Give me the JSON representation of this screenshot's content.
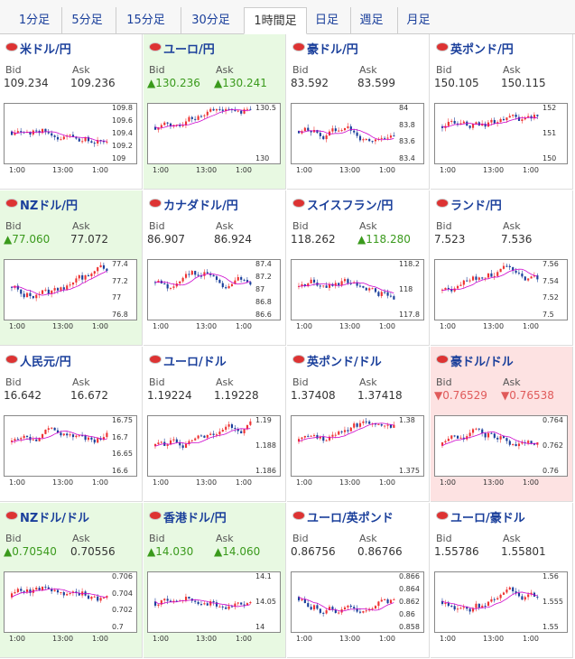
{
  "tabs": [
    "1分足",
    "5分足",
    "15分足",
    "30分足",
    "1時間足",
    "日足",
    "週足",
    "月足"
  ],
  "active_tab": "1時間足",
  "bid_label": "Bid",
  "ask_label": "Ask",
  "x_ticks": [
    "1:00",
    "13:00",
    "1:00"
  ],
  "pairs": [
    {
      "name": "米ドル/円",
      "bid": "109.234",
      "ask": "109.236",
      "state": "none",
      "bid_up": "",
      "ask_up": "",
      "yticks": [
        "109.8",
        "109.6",
        "109.4",
        "109.2",
        "109"
      ]
    },
    {
      "name": "ユーロ/円",
      "bid": "▲130.236",
      "ask": "▲130.241",
      "state": "up",
      "bid_up": "g",
      "ask_up": "g",
      "yticks": [
        "130.5",
        "130"
      ]
    },
    {
      "name": "豪ドル/円",
      "bid": "83.592",
      "ask": "83.599",
      "state": "none",
      "bid_up": "",
      "ask_up": "",
      "yticks": [
        "84",
        "83.8",
        "83.6",
        "83.4"
      ]
    },
    {
      "name": "英ポンド/円",
      "bid": "150.105",
      "ask": "150.115",
      "state": "none",
      "bid_up": "",
      "ask_up": "",
      "yticks": [
        "152",
        "151",
        "150"
      ]
    },
    {
      "name": "NZドル/円",
      "bid": "▲77.060",
      "ask": "77.072",
      "state": "up",
      "bid_up": "g",
      "ask_up": "",
      "yticks": [
        "77.4",
        "77.2",
        "77",
        "76.8"
      ]
    },
    {
      "name": "カナダドル/円",
      "bid": "86.907",
      "ask": "86.924",
      "state": "none",
      "bid_up": "",
      "ask_up": "",
      "yticks": [
        "87.4",
        "87.2",
        "87",
        "86.8",
        "86.6"
      ]
    },
    {
      "name": "スイスフラン/円",
      "bid": "118.262",
      "ask": "▲118.280",
      "state": "none",
      "bid_up": "",
      "ask_up": "g",
      "yticks": [
        "118.2",
        "118",
        "117.8"
      ]
    },
    {
      "name": "ランド/円",
      "bid": "7.523",
      "ask": "7.536",
      "state": "none",
      "bid_up": "",
      "ask_up": "",
      "yticks": [
        "7.56",
        "7.54",
        "7.52",
        "7.5"
      ]
    },
    {
      "name": "人民元/円",
      "bid": "16.642",
      "ask": "16.672",
      "state": "none",
      "bid_up": "",
      "ask_up": "",
      "yticks": [
        "16.75",
        "16.7",
        "16.65",
        "16.6"
      ]
    },
    {
      "name": "ユーロ/ドル",
      "bid": "1.19224",
      "ask": "1.19228",
      "state": "none",
      "bid_up": "",
      "ask_up": "",
      "yticks": [
        "1.19",
        "1.188",
        "1.186"
      ]
    },
    {
      "name": "英ポンド/ドル",
      "bid": "1.37408",
      "ask": "1.37418",
      "state": "none",
      "bid_up": "",
      "ask_up": "",
      "yticks": [
        "1.38",
        "1.375"
      ]
    },
    {
      "name": "豪ドル/ドル",
      "bid": "▼0.76529",
      "ask": "▼0.76538",
      "state": "down",
      "bid_up": "r",
      "ask_up": "r",
      "yticks": [
        "0.764",
        "0.762",
        "0.76"
      ]
    },
    {
      "name": "NZドル/ドル",
      "bid": "▲0.70540",
      "ask": "0.70556",
      "state": "up",
      "bid_up": "g",
      "ask_up": "",
      "yticks": [
        "0.706",
        "0.704",
        "0.702",
        "0.7"
      ]
    },
    {
      "name": "香港ドル/円",
      "bid": "▲14.030",
      "ask": "▲14.060",
      "state": "up",
      "bid_up": "g",
      "ask_up": "g",
      "yticks": [
        "14.1",
        "14.05",
        "14"
      ]
    },
    {
      "name": "ユーロ/英ポンド",
      "bid": "0.86756",
      "ask": "0.86766",
      "state": "none",
      "bid_up": "",
      "ask_up": "",
      "yticks": [
        "0.866",
        "0.864",
        "0.862",
        "0.86",
        "0.858"
      ]
    },
    {
      "name": "ユーロ/豪ドル",
      "bid": "1.55786",
      "ask": "1.55801",
      "state": "none",
      "bid_up": "",
      "ask_up": "",
      "yticks": [
        "1.56",
        "1.555",
        "1.55"
      ]
    }
  ],
  "colors": {
    "up_bg": "#e8f9e2",
    "down_bg": "#fde2e2",
    "link": "#1a3f9b",
    "candle_up": "#e33",
    "candle_down": "#1a3f9b",
    "ma": "#c0c"
  }
}
